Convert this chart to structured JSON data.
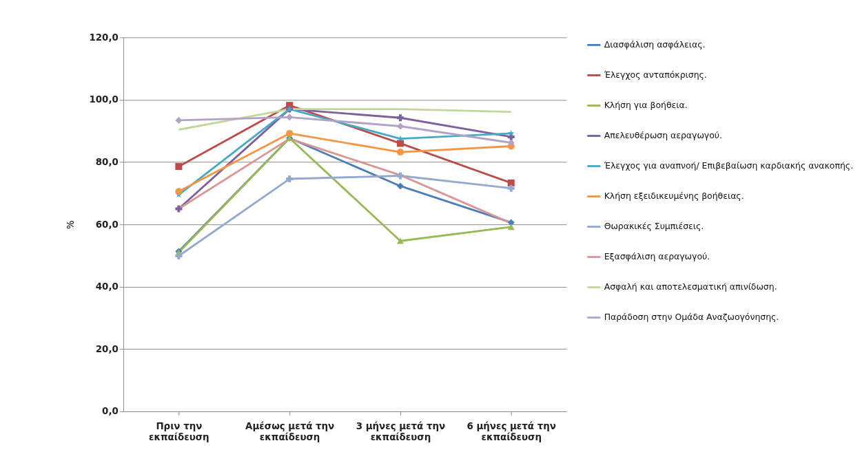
{
  "chart_data": {
    "type": "line",
    "ylabel": "%",
    "categories": [
      "Πριν την εκπαίδευση",
      "Αμέσως μετά την εκπαίδευση",
      "3 μήνες μετά την εκπαίδευση",
      "6 μήνες μετά την εκπαίδευση"
    ],
    "ylim": [
      0,
      120
    ],
    "yticks": [
      {
        "value": 0,
        "label": "0,0"
      },
      {
        "value": 20,
        "label": "20,0"
      },
      {
        "value": 40,
        "label": "40,0"
      },
      {
        "value": 60,
        "label": "60,0"
      },
      {
        "value": 80,
        "label": "80,0"
      },
      {
        "value": 100,
        "label": "100,0"
      },
      {
        "value": 120,
        "label": "120,0"
      }
    ],
    "grid": "y",
    "legend": "right",
    "line_style": "solid",
    "series": [
      {
        "name": "Διασφάλιση ασφάλειας.",
        "color": "#4a7ebb",
        "marker": "diamond",
        "values": [
          51.3,
          87.7,
          72.3,
          60.6
        ]
      },
      {
        "name": "Έλεγχος ανταπόκρισης.",
        "color": "#be4b48",
        "marker": "square",
        "values": [
          78.6,
          98.2,
          86.0,
          73.3
        ]
      },
      {
        "name": "Κλήση για βοήθεια.",
        "color": "#98b954",
        "marker": "triangle",
        "values": [
          51.0,
          87.7,
          54.7,
          59.2
        ]
      },
      {
        "name": "Απελευθέρωση αεραγωγού.",
        "color": "#7d60a0",
        "marker": "cross",
        "values": [
          65.0,
          97.0,
          94.2,
          88.1
        ]
      },
      {
        "name": "Έλεγχος για αναπνοή/ Επιβεβαίωση καρδιακής ανακοπής.",
        "color": "#46aac5",
        "marker": "star",
        "values": [
          69.5,
          97.0,
          87.5,
          89.2
        ]
      },
      {
        "name": "Κλήση εξειδικευμένης βοήθειας.",
        "color": "#f69544",
        "marker": "circle",
        "values": [
          70.6,
          89.2,
          83.2,
          85.1
        ]
      },
      {
        "name": "Θωρακικές Συμπιέσεις.",
        "color": "#93a9cf",
        "marker": "cross",
        "values": [
          49.9,
          74.6,
          75.6,
          71.6
        ]
      },
      {
        "name": "Εξασφάλιση αεραγωγού.",
        "color": "#d99694",
        "marker": "none",
        "values": [
          65.0,
          87.5,
          75.8,
          60.4
        ]
      },
      {
        "name": "Ασφαλή και αποτελεσματική απινίδωση.",
        "color": "#c3d69b",
        "marker": "none",
        "values": [
          90.4,
          97.0,
          97.0,
          96.1
        ]
      },
      {
        "name": "Παράδοση στην Ομάδα Αναζωογόνησης.",
        "color": "#b3a2c7",
        "marker": "diamond",
        "values": [
          93.4,
          94.4,
          91.5,
          86.2
        ]
      }
    ]
  }
}
